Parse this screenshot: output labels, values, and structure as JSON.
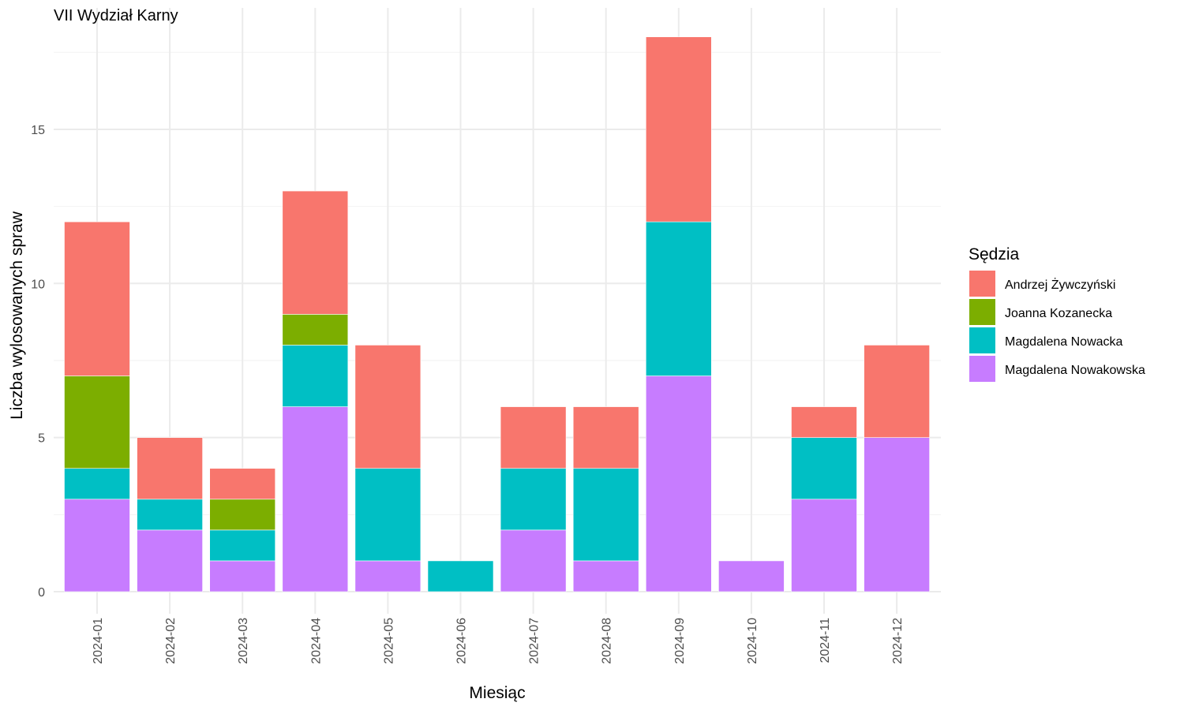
{
  "chart_data": {
    "type": "bar",
    "stacked": true,
    "title": "VII Wydział Karny",
    "xlabel": "Miesiąc",
    "ylabel": "Liczba wylosowanych spraw",
    "ylim": [
      0,
      18
    ],
    "yticks": [
      0,
      5,
      10,
      15
    ],
    "grid": true,
    "categories": [
      "2024-01",
      "2024-02",
      "2024-03",
      "2024-04",
      "2024-05",
      "2024-06",
      "2024-07",
      "2024-08",
      "2024-09",
      "2024-10",
      "2024-11",
      "2024-12"
    ],
    "series": [
      {
        "name": "Magdalena Nowakowska",
        "color": "#C77CFF",
        "values": [
          3,
          2,
          1,
          6,
          1,
          0,
          2,
          1,
          7,
          1,
          3,
          5
        ]
      },
      {
        "name": "Magdalena Nowacka",
        "color": "#00BFC4",
        "values": [
          1,
          1,
          1,
          2,
          3,
          1,
          2,
          3,
          5,
          0,
          2,
          0
        ]
      },
      {
        "name": "Joanna Kozanecka",
        "color": "#7CAE00",
        "values": [
          3,
          0,
          1,
          1,
          0,
          0,
          0,
          0,
          0,
          0,
          0,
          0
        ]
      },
      {
        "name": "Andrzej Żywczyński",
        "color": "#F8766D",
        "values": [
          5,
          2,
          1,
          4,
          4,
          0,
          2,
          2,
          6,
          0,
          1,
          3
        ]
      }
    ],
    "legend": {
      "title": "Sędzia",
      "position": "right",
      "order": [
        "Andrzej Żywczyński",
        "Joanna Kozanecka",
        "Magdalena Nowacka",
        "Magdalena Nowakowska"
      ]
    }
  }
}
